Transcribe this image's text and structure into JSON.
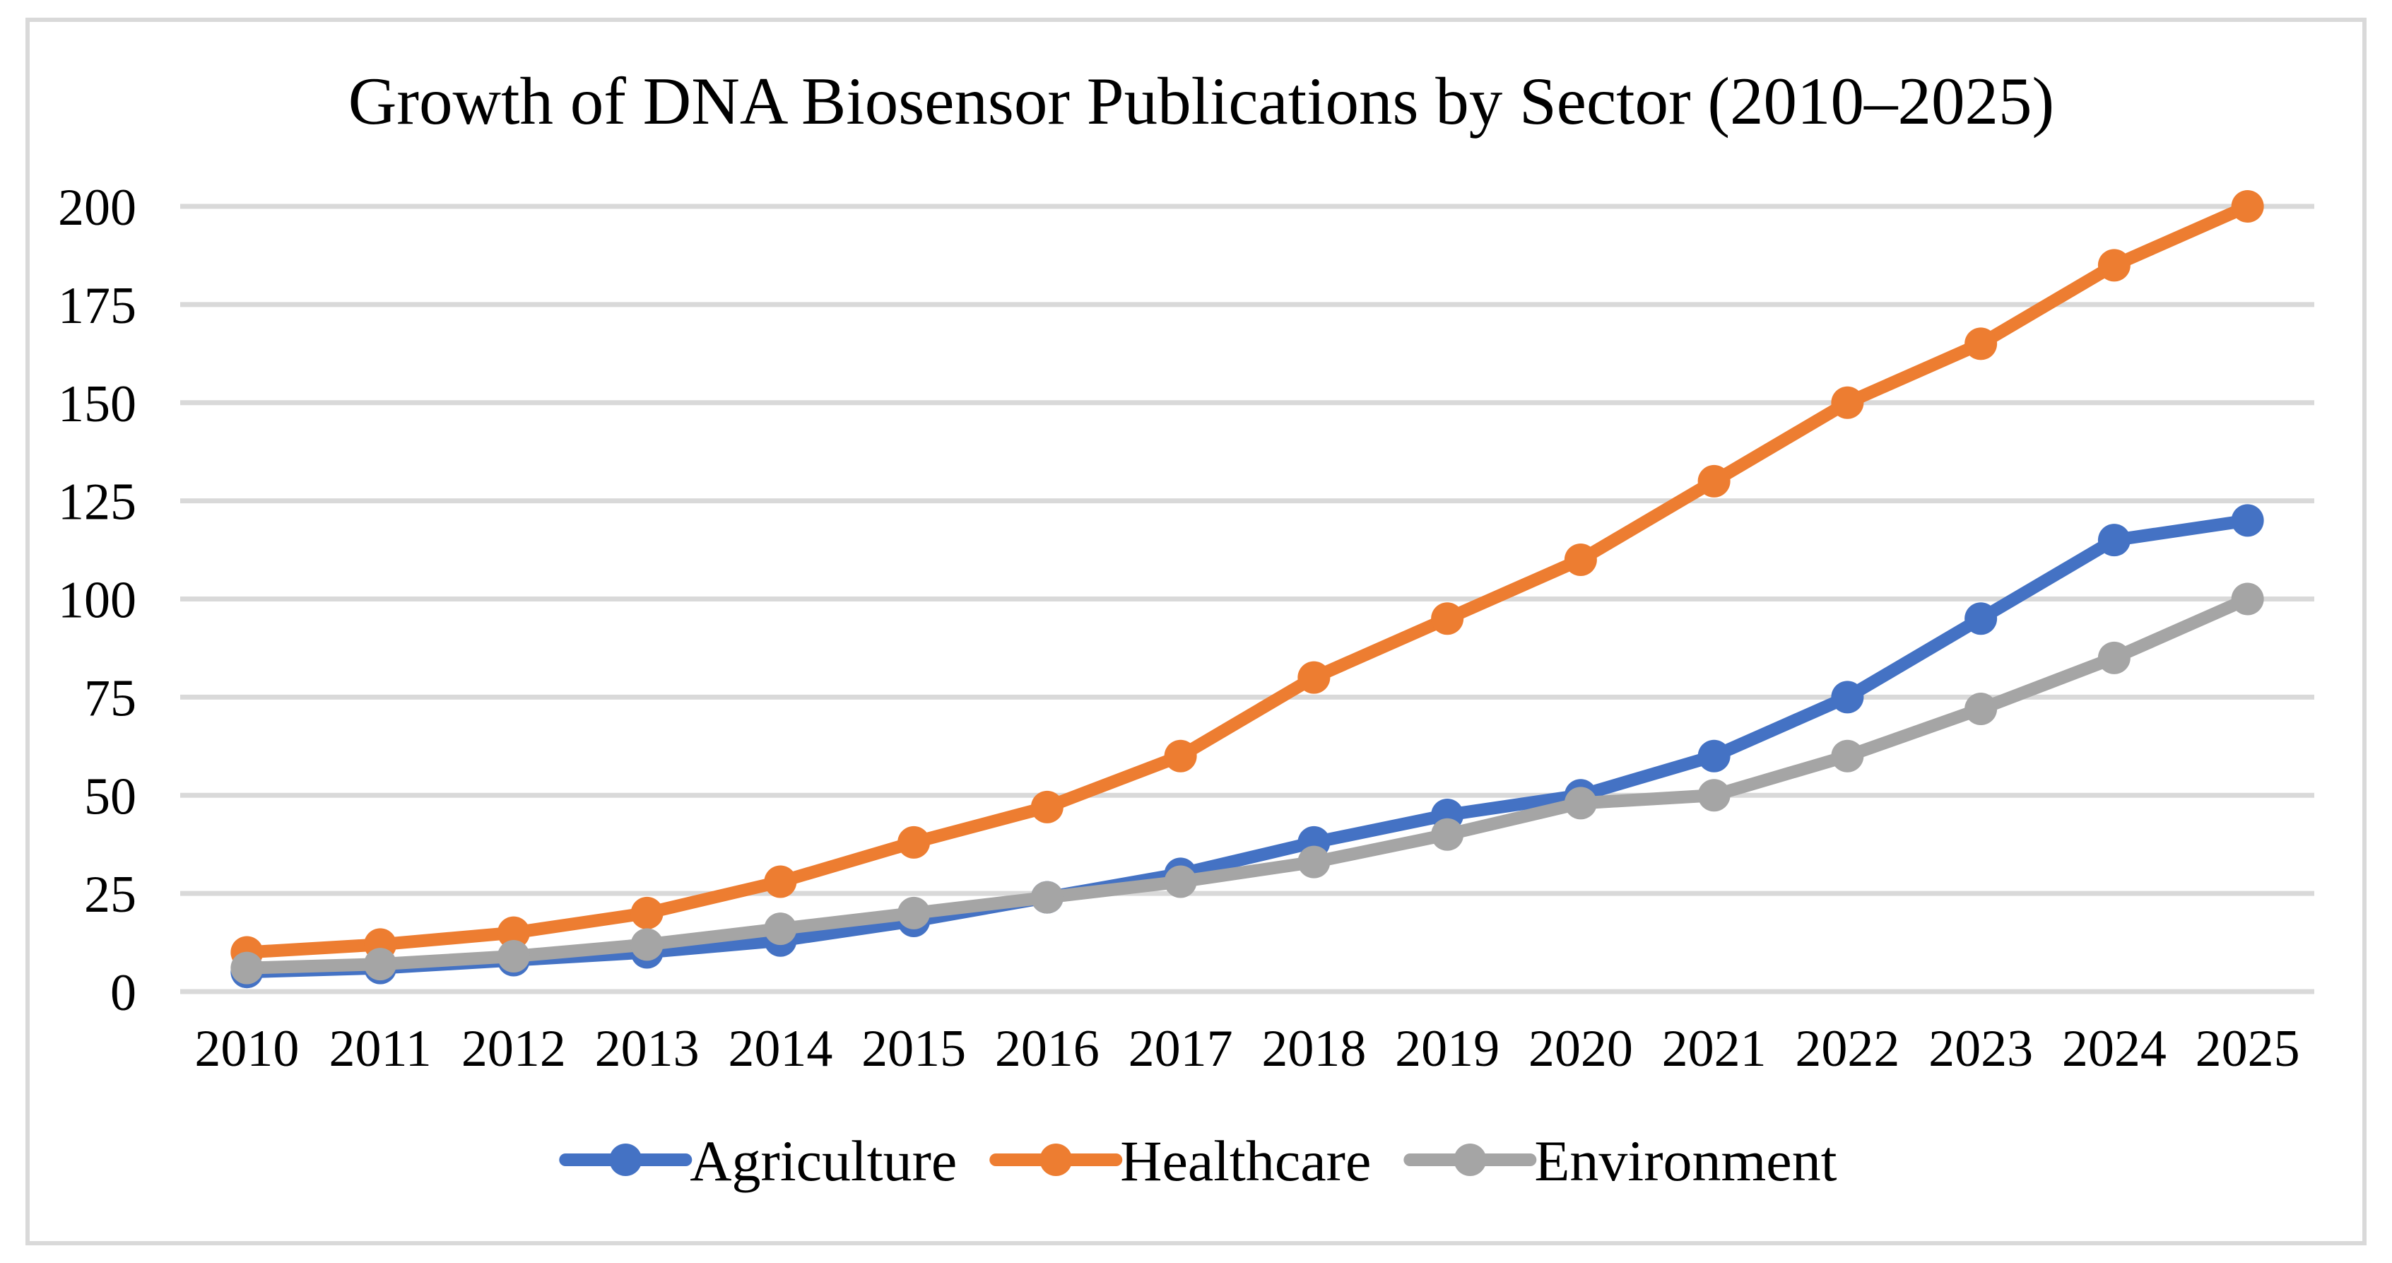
{
  "chart_data": {
    "type": "line",
    "title": "Growth of DNA Biosensor Publications by Sector (2010–2025)",
    "x": [
      2010,
      2011,
      2012,
      2013,
      2014,
      2015,
      2016,
      2017,
      2018,
      2019,
      2020,
      2021,
      2022,
      2023,
      2024,
      2025
    ],
    "series": [
      {
        "name": "Agriculture",
        "color": "#4472C4",
        "values": [
          5,
          6,
          8,
          10,
          13,
          18,
          24,
          30,
          38,
          45,
          50,
          60,
          75,
          95,
          115,
          120
        ]
      },
      {
        "name": "Healthcare",
        "color": "#ED7D31",
        "values": [
          10,
          12,
          15,
          20,
          28,
          38,
          47,
          60,
          80,
          95,
          110,
          130,
          150,
          165,
          185,
          200
        ]
      },
      {
        "name": "Environment",
        "color": "#A5A5A5",
        "values": [
          6,
          7,
          9,
          12,
          16,
          20,
          24,
          28,
          33,
          40,
          48,
          50,
          60,
          72,
          85,
          100
        ]
      }
    ],
    "xlabel": "",
    "ylabel": "",
    "ylim": [
      0,
      200
    ],
    "yticks": [
      0,
      25,
      50,
      75,
      100,
      125,
      150,
      175,
      200
    ],
    "grid": true,
    "legend_position": "bottom"
  },
  "style": {
    "grid_color": "#D9D9D9",
    "frame_color": "#D9D9D9",
    "text_color": "#000000",
    "background": "#FFFFFF",
    "line_width": 18,
    "marker_radius": 23
  }
}
